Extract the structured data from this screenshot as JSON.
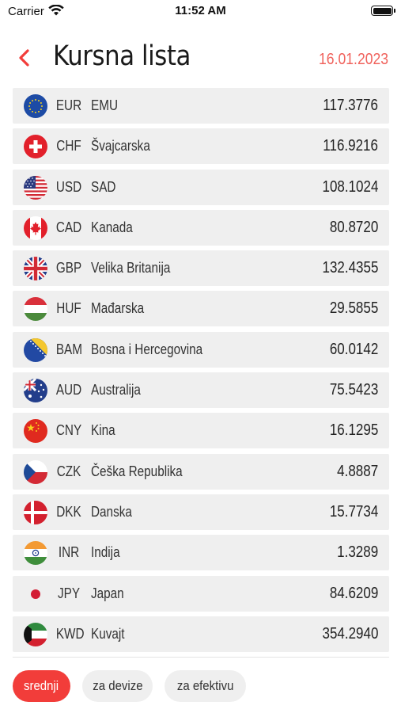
{
  "status_bar": {
    "carrier": "Carrier",
    "time": "11:52 AM"
  },
  "header": {
    "title": "Kursna lista",
    "date": "16.01.2023"
  },
  "rates": [
    {
      "code": "EUR",
      "name": "EMU",
      "rate": "117.3776",
      "flag": "eu-flag-icon"
    },
    {
      "code": "CHF",
      "name": "Švajcarska",
      "rate": "116.9216",
      "flag": "switzerland-flag-icon"
    },
    {
      "code": "USD",
      "name": "SAD",
      "rate": "108.1024",
      "flag": "usa-flag-icon"
    },
    {
      "code": "CAD",
      "name": "Kanada",
      "rate": "80.8720",
      "flag": "canada-flag-icon"
    },
    {
      "code": "GBP",
      "name": "Velika Britanija",
      "rate": "132.4355",
      "flag": "uk-flag-icon"
    },
    {
      "code": "HUF",
      "name": "Mađarska",
      "rate": "29.5855",
      "flag": "hungary-flag-icon"
    },
    {
      "code": "BAM",
      "name": "Bosna i Hercegovina",
      "rate": "60.0142",
      "flag": "bosnia-flag-icon"
    },
    {
      "code": "AUD",
      "name": "Australija",
      "rate": "75.5423",
      "flag": "australia-flag-icon"
    },
    {
      "code": "CNY",
      "name": "Kina",
      "rate": "16.1295",
      "flag": "china-flag-icon"
    },
    {
      "code": "CZK",
      "name": "Češka Republika",
      "rate": "4.8887",
      "flag": "czech-flag-icon"
    },
    {
      "code": "DKK",
      "name": "Danska",
      "rate": "15.7734",
      "flag": "denmark-flag-icon"
    },
    {
      "code": "INR",
      "name": "Indija",
      "rate": "1.3289",
      "flag": "india-flag-icon"
    },
    {
      "code": "JPY",
      "name": "Japan",
      "rate": "84.6209",
      "flag": "japan-flag-icon"
    },
    {
      "code": "KWD",
      "name": "Kuvajt",
      "rate": "354.2940",
      "flag": "kuwait-flag-icon"
    }
  ],
  "tabs": [
    {
      "label": "srednji",
      "active": true
    },
    {
      "label": "za devize",
      "active": false
    },
    {
      "label": "za efektivu",
      "active": false
    }
  ],
  "colors": {
    "accent": "#f23d3a",
    "date": "#f0625c",
    "row_bg": "#efefef"
  }
}
